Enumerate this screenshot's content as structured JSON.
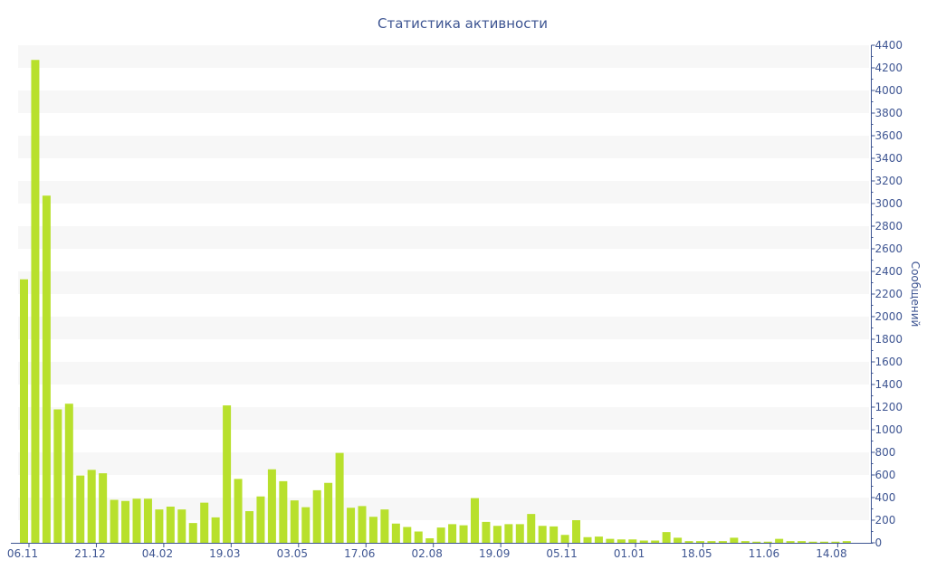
{
  "chart_data": {
    "type": "bar",
    "title": "Статистика активности",
    "ylabel": "Сообщений",
    "xlabel": "",
    "ylim": [
      0,
      4400
    ],
    "y_ticks": [
      0,
      200,
      400,
      600,
      800,
      1000,
      1200,
      1400,
      1600,
      1800,
      2000,
      2200,
      2400,
      2600,
      2800,
      3000,
      3200,
      3400,
      3600,
      3800,
      4000,
      4200,
      4400
    ],
    "x_tick_labels": [
      "06.11",
      "21.12",
      "04.02",
      "19.03",
      "03.05",
      "17.06",
      "02.08",
      "19.09",
      "05.11",
      "01.01",
      "18.05",
      "11.06",
      "14.08"
    ],
    "y_axis_position": "right",
    "grid": true,
    "legend": "none",
    "bar_color": "#b8e02c",
    "band_color": "#f7f7f7",
    "text_color": "#3e5592",
    "values": [
      2330,
      4270,
      3070,
      1180,
      1230,
      595,
      645,
      615,
      380,
      370,
      390,
      390,
      295,
      320,
      295,
      175,
      355,
      225,
      1215,
      565,
      280,
      410,
      650,
      545,
      375,
      315,
      465,
      530,
      795,
      310,
      325,
      230,
      295,
      170,
      140,
      100,
      40,
      135,
      165,
      155,
      395,
      185,
      150,
      165,
      165,
      255,
      150,
      145,
      70,
      200,
      50,
      55,
      35,
      30,
      30,
      20,
      20,
      95,
      45,
      15,
      15,
      15,
      15,
      45,
      15,
      10,
      10,
      35,
      15,
      15,
      10,
      10,
      10,
      15
    ]
  }
}
